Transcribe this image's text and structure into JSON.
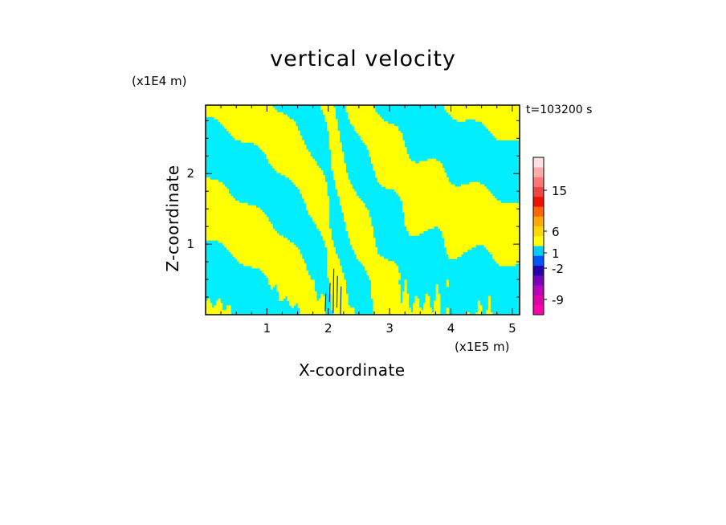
{
  "chart_data": {
    "type": "heatmap",
    "title": "vertical velocity",
    "xlabel": "X-coordinate",
    "ylabel": "Z-coordinate",
    "x_unit": "(x1E5 m)",
    "y_unit": "(x1E4 m)",
    "time_label": "t=103200 s",
    "xlim": [
      0,
      5.12
    ],
    "ylim": [
      0,
      2.97
    ],
    "x_ticks": [
      "1",
      "2",
      "3",
      "4",
      "5"
    ],
    "x_tick_values": [
      1,
      2,
      3,
      4,
      5
    ],
    "y_ticks": [
      "1",
      "2"
    ],
    "y_tick_values": [
      1,
      2
    ],
    "dominant_colors": {
      "positive": "#ffff00",
      "negative": "#00eeff"
    },
    "colorbar": {
      "labels": [
        {
          "text": "15",
          "value": 15
        },
        {
          "text": "6",
          "value": 6
        },
        {
          "text": "1",
          "value": 1
        },
        {
          "text": "-2",
          "value": -2
        },
        {
          "text": "-9",
          "value": -9
        }
      ],
      "colors": [
        "#ff00aa",
        "#dd00aa",
        "#bb00bb",
        "#7700bb",
        "#2200aa",
        "#0055ff",
        "#00ccff",
        "#ffff00",
        "#ffd700",
        "#ffaa00",
        "#ff6600",
        "#ee1100",
        "#ee4444",
        "#ff7777",
        "#ffaaaa",
        "#ffe0e0"
      ]
    }
  }
}
